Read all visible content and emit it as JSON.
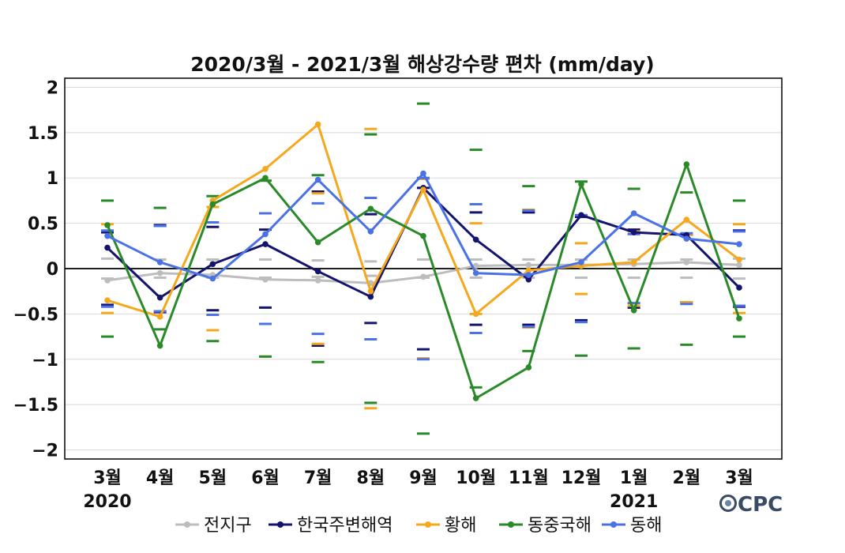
{
  "chart_data": {
    "type": "line",
    "title": "2020/3월 - 2021/3월 해상강수량 편차 (mm/day)",
    "categories": [
      "3월",
      "4월",
      "5월",
      "6월",
      "7월",
      "8월",
      "9월",
      "10월",
      "11월",
      "12월",
      "1월",
      "2월",
      "3월"
    ],
    "year_labels": [
      {
        "year": "2020",
        "under_category": "3월"
      },
      {
        "year": "2021",
        "under_category": "1월"
      }
    ],
    "ylim": [
      -2.1,
      2.1
    ],
    "yticks": [
      2,
      1.5,
      1,
      0.5,
      0,
      -0.5,
      -1,
      -1.5,
      -2
    ],
    "ytick_labels": [
      "2",
      "1.5",
      "1",
      "0.5",
      "0",
      "−0.5",
      "−1",
      "−1.5",
      "−2"
    ],
    "grid": true,
    "legend_position": "bottom",
    "series": [
      {
        "name": "전지구",
        "color": "#bdbdbd",
        "values": [
          -0.13,
          -0.05,
          -0.07,
          -0.12,
          -0.13,
          -0.16,
          -0.09,
          0.03,
          0.04,
          0.04,
          0.05,
          0.07,
          0.04
        ],
        "thresholds": [
          0.11,
          0.1,
          0.1,
          0.1,
          0.09,
          0.08,
          0.1,
          0.1,
          0.1,
          0.1,
          0.1,
          0.1,
          0.11
        ]
      },
      {
        "name": "한국주변해역",
        "color": "#14146e",
        "values": [
          0.23,
          -0.32,
          0.05,
          0.27,
          -0.03,
          -0.31,
          0.89,
          0.32,
          -0.12,
          0.59,
          0.4,
          0.37,
          -0.21
        ],
        "thresholds": [
          0.4,
          0.48,
          0.46,
          0.43,
          0.85,
          0.6,
          0.89,
          0.62,
          0.62,
          0.57,
          0.43,
          0.37,
          0.42
        ]
      },
      {
        "name": "황해",
        "color": "#f5a81e",
        "values": [
          -0.35,
          -0.53,
          0.75,
          1.1,
          1.59,
          -0.25,
          0.87,
          -0.5,
          -0.02,
          0.03,
          0.07,
          0.54,
          0.1
        ],
        "thresholds": [
          0.49,
          0.47,
          0.68,
          0.97,
          0.83,
          1.54,
          0.99,
          0.5,
          0.65,
          0.28,
          0.41,
          0.37,
          0.49
        ]
      },
      {
        "name": "동중국해",
        "color": "#2a8a2a",
        "values": [
          0.48,
          -0.85,
          0.71,
          1.0,
          0.29,
          0.66,
          0.36,
          -1.43,
          -1.09,
          0.93,
          -0.46,
          1.15,
          -0.55
        ],
        "thresholds": [
          0.75,
          0.67,
          0.8,
          0.97,
          1.03,
          1.48,
          1.82,
          1.31,
          0.91,
          0.96,
          0.88,
          0.84,
          0.75
        ]
      },
      {
        "name": "동해",
        "color": "#4a72e6",
        "values": [
          0.36,
          0.07,
          -0.11,
          0.38,
          0.98,
          0.41,
          1.05,
          -0.05,
          -0.07,
          0.07,
          0.61,
          0.33,
          0.27
        ],
        "thresholds": [
          0.42,
          0.47,
          0.51,
          0.61,
          0.72,
          0.78,
          1.0,
          0.71,
          0.64,
          0.59,
          0.38,
          0.39,
          0.41
        ]
      }
    ]
  },
  "logo": {
    "text": "CPC"
  }
}
